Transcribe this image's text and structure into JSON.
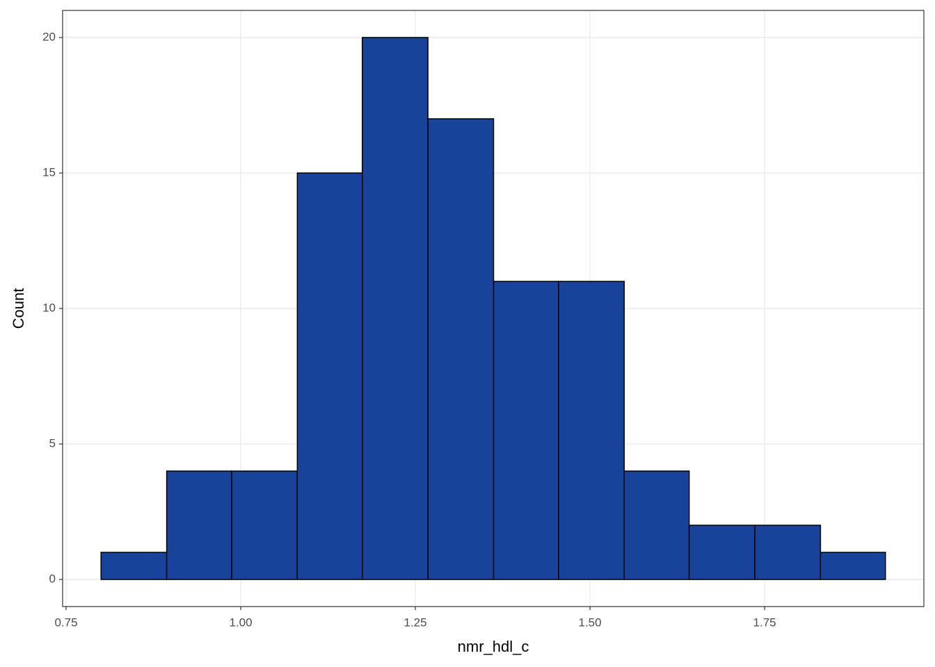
{
  "chart_data": {
    "type": "histogram",
    "x_label": "nmr_hdl_c",
    "y_label": "Count",
    "bins": [
      0.8,
      0.894,
      0.987,
      1.081,
      1.174,
      1.268,
      1.362,
      1.455,
      1.549,
      1.642,
      1.736,
      1.83,
      1.923
    ],
    "values": [
      1,
      4,
      4,
      15,
      20,
      17,
      11,
      11,
      4,
      2,
      2,
      1
    ],
    "color": "#17449a",
    "edge_color": "#000000",
    "xlim": [
      0.745,
      1.978
    ],
    "ylim": [
      -1,
      21
    ],
    "xticks": [
      0.75,
      {
        "value": 1,
        "label": "1.00"
      },
      1.25,
      {
        "value": 1.5,
        "label": "1.50"
      },
      1.75
    ],
    "yticks": [
      0,
      5,
      10,
      15,
      20
    ],
    "grid": true
  }
}
